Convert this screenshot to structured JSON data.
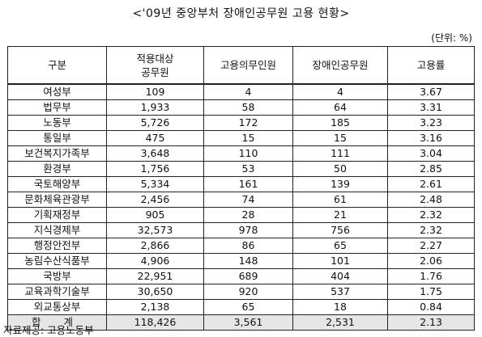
{
  "title": "<'09년 중앙부처 장애인공무원 고용 현황>",
  "unit": "(단위: %)",
  "headers": [
    "구분",
    "적용대상\n공무원",
    "고용의무인원",
    "장애인공무원",
    "고용률"
  ],
  "rows": [
    [
      "여성부",
      "109",
      "4",
      "4",
      "3.67"
    ],
    [
      "법무부",
      "1,933",
      "58",
      "64",
      "3.31"
    ],
    [
      "노동부",
      "5,726",
      "172",
      "185",
      "3.23"
    ],
    [
      "통일부",
      "475",
      "15",
      "15",
      "3.16"
    ],
    [
      "보건복지가족부",
      "3,648",
      "110",
      "111",
      "3.04"
    ],
    [
      "환경부",
      "1,756",
      "53",
      "50",
      "2.85"
    ],
    [
      "국토해양부",
      "5,334",
      "161",
      "139",
      "2.61"
    ],
    [
      "문화체육관광부",
      "2,456",
      "74",
      "61",
      "2.48"
    ],
    [
      "기획재정부",
      "905",
      "28",
      "21",
      "2.32"
    ],
    [
      "지식경제부",
      "32,573",
      "978",
      "756",
      "2.32"
    ],
    [
      "행정안전부",
      "2,866",
      "86",
      "65",
      "2.27"
    ],
    [
      "농림수산식품부",
      "4,906",
      "148",
      "101",
      "2.06"
    ],
    [
      "국방부",
      "22,951",
      "689",
      "404",
      "1.76"
    ],
    [
      "교육과학기술부",
      "30,650",
      "920",
      "537",
      "1.75"
    ],
    [
      "외교통상부",
      "2,138",
      "65",
      "18",
      "0.84"
    ]
  ],
  "total": [
    "합 계",
    "118,426",
    "3,561",
    "2,531",
    "2.13"
  ],
  "source": "자료제공: 고용노동부"
}
